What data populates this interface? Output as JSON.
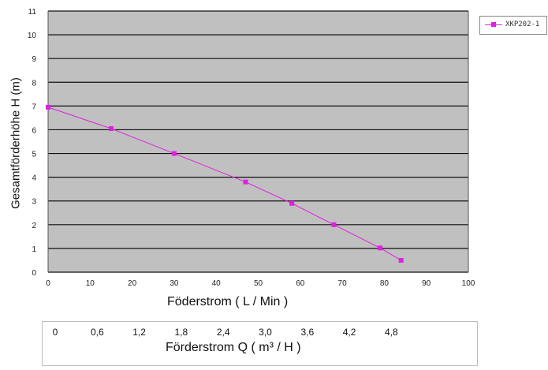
{
  "chart_data": {
    "type": "line",
    "ylabel": "Gesamtförderhöhe  H (m)",
    "xlabel": "Föderstrom ( L / Min )",
    "xlim": [
      0,
      100
    ],
    "ylim": [
      0,
      11
    ],
    "x_ticks": [
      "0",
      "10",
      "20",
      "30",
      "40",
      "50",
      "60",
      "70",
      "80",
      "90",
      "100"
    ],
    "y_ticks": [
      "0",
      "1",
      "2",
      "3",
      "4",
      "5",
      "6",
      "7",
      "8",
      "9",
      "10",
      "11"
    ],
    "grid": "horizontal",
    "legend_position": "top-right",
    "series": [
      {
        "name": "XKP202-1",
        "color": "#e01fe0",
        "x": [
          0,
          15,
          30,
          47,
          58,
          68,
          79,
          84
        ],
        "y": [
          6.95,
          6.05,
          5.0,
          3.8,
          2.9,
          2.0,
          1.02,
          0.5
        ]
      }
    ],
    "secondary_axis": {
      "label": "Förderstrom Q ( m³ / H )",
      "ticks": [
        {
          "label": "0",
          "x": 0
        },
        {
          "label": "0,6",
          "x": 10
        },
        {
          "label": "1,2",
          "x": 20
        },
        {
          "label": "1,8",
          "x": 30
        },
        {
          "label": "2,4",
          "x": 40
        },
        {
          "label": "3,0",
          "x": 50
        },
        {
          "label": "3,6",
          "x": 60
        },
        {
          "label": "4,2",
          "x": 70
        },
        {
          "label": "4,8",
          "x": 80
        }
      ]
    }
  }
}
